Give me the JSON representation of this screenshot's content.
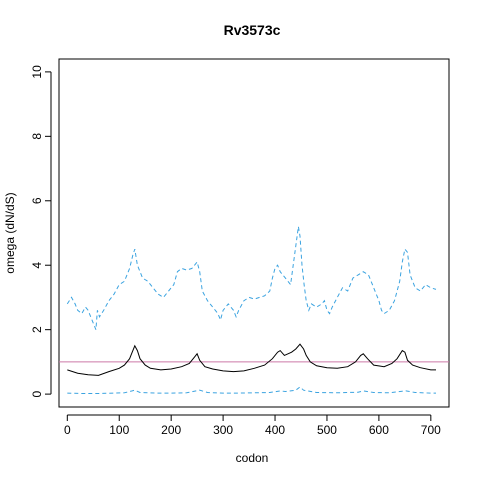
{
  "chart_data": {
    "type": "line",
    "title": "Rv3573c",
    "xlabel": "codon",
    "ylabel": "omega (dN/dS)",
    "xlim": [
      -16,
      735
    ],
    "ylim": [
      -0.4,
      10.4
    ],
    "x_ticks": [
      0,
      100,
      200,
      300,
      400,
      500,
      600,
      700
    ],
    "y_ticks": [
      0,
      2,
      4,
      6,
      8,
      10
    ],
    "reference_line": {
      "y": 1,
      "color": "#cc79a7"
    },
    "grid": false,
    "series": [
      {
        "style": "dashed",
        "color": "#3ba3e0",
        "x": [
          0,
          8,
          15,
          20,
          28,
          35,
          40,
          45,
          50,
          55,
          58,
          62,
          70,
          80,
          90,
          100,
          110,
          120,
          126,
          130,
          135,
          145,
          155,
          165,
          175,
          185,
          195,
          205,
          212,
          220,
          230,
          240,
          250,
          255,
          260,
          270,
          280,
          285,
          290,
          295,
          300,
          310,
          320,
          325,
          330,
          340,
          350,
          360,
          370,
          380,
          390,
          395,
          400,
          405,
          410,
          420,
          430,
          435,
          440,
          445,
          448,
          452,
          456,
          460,
          465,
          470,
          480,
          490,
          495,
          500,
          505,
          510,
          520,
          530,
          540,
          550,
          560,
          570,
          580,
          590,
          600,
          605,
          610,
          620,
          630,
          640,
          645,
          650,
          655,
          660,
          670,
          680,
          690,
          700,
          710
        ],
        "values": [
          2.8,
          3.0,
          2.8,
          2.6,
          2.5,
          2.7,
          2.6,
          2.4,
          2.2,
          2.0,
          2.6,
          2.4,
          2.6,
          2.9,
          3.1,
          3.4,
          3.5,
          3.9,
          4.3,
          4.5,
          4.0,
          3.6,
          3.5,
          3.3,
          3.1,
          3.0,
          3.2,
          3.4,
          3.8,
          3.9,
          3.85,
          3.9,
          4.1,
          3.8,
          3.2,
          2.9,
          2.7,
          2.6,
          2.5,
          2.3,
          2.6,
          2.8,
          2.6,
          2.4,
          2.6,
          2.9,
          3.0,
          2.95,
          3.0,
          3.05,
          3.2,
          3.6,
          3.9,
          4.0,
          3.8,
          3.6,
          3.4,
          4.0,
          4.6,
          5.2,
          4.9,
          4.0,
          3.4,
          2.9,
          2.6,
          2.8,
          2.7,
          2.8,
          2.9,
          2.6,
          2.5,
          2.7,
          3.0,
          3.3,
          3.2,
          3.6,
          3.7,
          3.8,
          3.7,
          3.3,
          2.9,
          2.6,
          2.5,
          2.6,
          2.9,
          3.5,
          4.1,
          4.5,
          4.4,
          3.7,
          3.3,
          3.2,
          3.4,
          3.3,
          3.25
        ]
      },
      {
        "style": "solid",
        "color": "#000000",
        "x": [
          0,
          20,
          40,
          60,
          80,
          100,
          110,
          120,
          125,
          130,
          135,
          140,
          150,
          160,
          180,
          200,
          220,
          235,
          245,
          250,
          255,
          265,
          280,
          300,
          320,
          340,
          360,
          380,
          395,
          405,
          410,
          418,
          425,
          432,
          440,
          448,
          455,
          460,
          468,
          480,
          500,
          520,
          540,
          555,
          565,
          570,
          578,
          590,
          610,
          625,
          635,
          645,
          650,
          655,
          665,
          680,
          700,
          710
        ],
        "values": [
          0.75,
          0.65,
          0.6,
          0.58,
          0.7,
          0.8,
          0.9,
          1.1,
          1.3,
          1.5,
          1.35,
          1.1,
          0.9,
          0.8,
          0.75,
          0.78,
          0.85,
          0.95,
          1.15,
          1.25,
          1.05,
          0.85,
          0.78,
          0.72,
          0.7,
          0.72,
          0.8,
          0.9,
          1.1,
          1.3,
          1.35,
          1.2,
          1.25,
          1.3,
          1.4,
          1.55,
          1.4,
          1.2,
          1.0,
          0.88,
          0.82,
          0.8,
          0.85,
          1.0,
          1.2,
          1.25,
          1.1,
          0.9,
          0.85,
          0.95,
          1.1,
          1.35,
          1.3,
          1.05,
          0.9,
          0.82,
          0.75,
          0.75
        ]
      },
      {
        "style": "dashed",
        "color": "#3ba3e0",
        "x": [
          0,
          30,
          60,
          90,
          110,
          125,
          130,
          140,
          170,
          200,
          230,
          248,
          255,
          270,
          300,
          330,
          360,
          390,
          410,
          420,
          440,
          448,
          455,
          480,
          520,
          560,
          570,
          590,
          620,
          645,
          652,
          670,
          700,
          710
        ],
        "values": [
          0.03,
          0.02,
          0.02,
          0.03,
          0.04,
          0.1,
          0.12,
          0.05,
          0.03,
          0.03,
          0.04,
          0.1,
          0.12,
          0.05,
          0.03,
          0.03,
          0.04,
          0.05,
          0.1,
          0.08,
          0.12,
          0.22,
          0.12,
          0.05,
          0.04,
          0.06,
          0.1,
          0.05,
          0.04,
          0.09,
          0.1,
          0.05,
          0.03,
          0.03
        ]
      }
    ]
  }
}
